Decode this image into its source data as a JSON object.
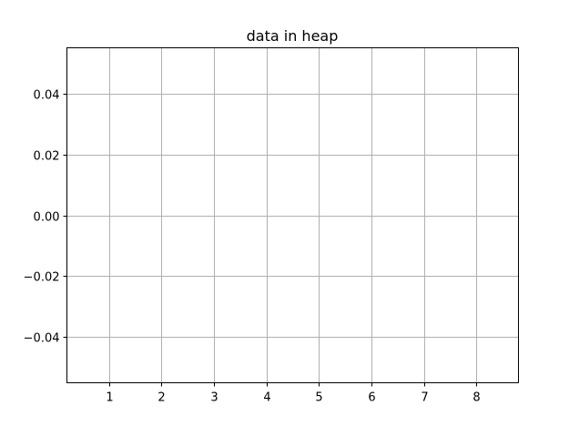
{
  "chart_data": {
    "type": "line",
    "title": "data in heap",
    "xlabel": "",
    "ylabel": "",
    "x_ticks": [
      "1",
      "2",
      "3",
      "4",
      "5",
      "6",
      "7",
      "8"
    ],
    "y_ticks": [
      "0.04",
      "0.02",
      "0.00",
      "−0.02",
      "−0.04"
    ],
    "y_tick_values": [
      0.04,
      0.02,
      0.0,
      -0.02,
      -0.04
    ],
    "x_tick_values": [
      1,
      2,
      3,
      4,
      5,
      6,
      7,
      8
    ],
    "xlim": [
      0.2,
      8.8
    ],
    "ylim": [
      -0.055,
      0.055
    ],
    "grid": true,
    "series": [],
    "colors": {
      "grid": "#b0b0b0",
      "axes": "#000000",
      "background": "#ffffff"
    }
  }
}
